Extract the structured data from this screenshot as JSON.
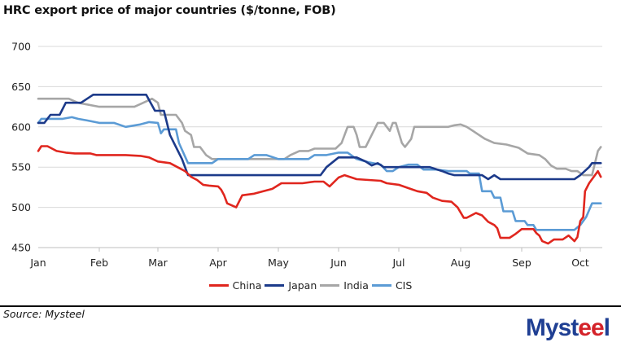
{
  "title": "HRC export price of major countries ($/tonne, FOB)",
  "source": "Source: Mysteel",
  "logo": {
    "text": "Mysteel",
    "part1": "Myst",
    "part2": "ee",
    "part3": "l"
  },
  "chart_data": {
    "type": "line",
    "title": "HRC export price of major countries ($/tonne, FOB)",
    "xlabel": "",
    "ylabel": "",
    "x_unit": "month index (0 = Jan, 9 = Oct)",
    "xlim": [
      0,
      9.35
    ],
    "ylim": [
      450,
      700
    ],
    "yticks": [
      450,
      500,
      550,
      600,
      650,
      700
    ],
    "xticks": [
      0,
      1,
      2,
      3,
      4,
      5,
      6,
      7,
      8,
      9
    ],
    "xtick_labels": [
      "Jan",
      "Feb",
      "Mar",
      "Apr",
      "May",
      "Jun",
      "Jul",
      "Aug",
      "Sep",
      "Oct"
    ],
    "grid": "horizontal",
    "legend": "bottom-center",
    "series": [
      {
        "name": "China",
        "color": "#e0261e",
        "points": [
          [
            0,
            570
          ],
          [
            0.05,
            576
          ],
          [
            0.15,
            576
          ],
          [
            0.3,
            570
          ],
          [
            0.45,
            568
          ],
          [
            0.6,
            567
          ],
          [
            0.85,
            567
          ],
          [
            0.95,
            565
          ],
          [
            1.2,
            565
          ],
          [
            1.45,
            565
          ],
          [
            1.7,
            564
          ],
          [
            1.85,
            562
          ],
          [
            2.0,
            557
          ],
          [
            2.2,
            555
          ],
          [
            2.35,
            549
          ],
          [
            2.45,
            545
          ],
          [
            2.55,
            538
          ],
          [
            2.65,
            534
          ],
          [
            2.75,
            528
          ],
          [
            2.85,
            527
          ],
          [
            3.0,
            526
          ],
          [
            3.05,
            522
          ],
          [
            3.1,
            515
          ],
          [
            3.15,
            505
          ],
          [
            3.3,
            500
          ],
          [
            3.4,
            515
          ],
          [
            3.6,
            517
          ],
          [
            3.9,
            523
          ],
          [
            4.05,
            530
          ],
          [
            4.4,
            530
          ],
          [
            4.6,
            532
          ],
          [
            4.75,
            532
          ],
          [
            4.85,
            526
          ],
          [
            5.0,
            537
          ],
          [
            5.1,
            540
          ],
          [
            5.3,
            535
          ],
          [
            5.7,
            533
          ],
          [
            5.8,
            530
          ],
          [
            6.0,
            528
          ],
          [
            6.15,
            524
          ],
          [
            6.3,
            520
          ],
          [
            6.45,
            518
          ],
          [
            6.55,
            512
          ],
          [
            6.7,
            508
          ],
          [
            6.85,
            507
          ],
          [
            6.95,
            500
          ],
          [
            7.05,
            487
          ],
          [
            7.1,
            487
          ],
          [
            7.25,
            493
          ],
          [
            7.35,
            490
          ],
          [
            7.45,
            482
          ],
          [
            7.55,
            478
          ],
          [
            7.6,
            474
          ],
          [
            7.65,
            462
          ],
          [
            7.8,
            462
          ],
          [
            7.9,
            467
          ],
          [
            8.0,
            473
          ],
          [
            8.2,
            473
          ],
          [
            8.25,
            468
          ],
          [
            8.3,
            465
          ],
          [
            8.35,
            458
          ],
          [
            8.45,
            455
          ],
          [
            8.55,
            460
          ],
          [
            8.7,
            460
          ],
          [
            8.8,
            465
          ],
          [
            8.9,
            458
          ],
          [
            8.95,
            463
          ],
          [
            9.0,
            483
          ],
          [
            9.05,
            488
          ],
          [
            9.08,
            520
          ],
          [
            9.15,
            530
          ],
          [
            9.25,
            540
          ],
          [
            9.3,
            545
          ],
          [
            9.35,
            538
          ]
        ]
      },
      {
        "name": "Japan",
        "color": "#1c3a8a",
        "points": [
          [
            0,
            605
          ],
          [
            0.1,
            605
          ],
          [
            0.2,
            615
          ],
          [
            0.35,
            615
          ],
          [
            0.45,
            630
          ],
          [
            0.7,
            630
          ],
          [
            0.9,
            640
          ],
          [
            1.2,
            640
          ],
          [
            1.5,
            640
          ],
          [
            1.7,
            640
          ],
          [
            1.8,
            640
          ],
          [
            1.95,
            620
          ],
          [
            2.1,
            620
          ],
          [
            2.2,
            590
          ],
          [
            2.3,
            575
          ],
          [
            2.4,
            560
          ],
          [
            2.5,
            540
          ],
          [
            2.8,
            540
          ],
          [
            3.5,
            540
          ],
          [
            4.0,
            540
          ],
          [
            4.5,
            540
          ],
          [
            4.7,
            540
          ],
          [
            4.8,
            550
          ],
          [
            5.0,
            562
          ],
          [
            5.3,
            562
          ],
          [
            5.45,
            557
          ],
          [
            5.55,
            552
          ],
          [
            5.65,
            555
          ],
          [
            5.75,
            550
          ],
          [
            5.9,
            550
          ],
          [
            6.2,
            550
          ],
          [
            6.5,
            550
          ],
          [
            6.7,
            545
          ],
          [
            6.8,
            542
          ],
          [
            6.9,
            540
          ],
          [
            7.2,
            540
          ],
          [
            7.35,
            540
          ],
          [
            7.45,
            535
          ],
          [
            7.55,
            540
          ],
          [
            7.65,
            535
          ],
          [
            7.9,
            535
          ],
          [
            8.3,
            535
          ],
          [
            8.7,
            535
          ],
          [
            8.9,
            535
          ],
          [
            9.0,
            540
          ],
          [
            9.15,
            550
          ],
          [
            9.2,
            555
          ],
          [
            9.35,
            555
          ]
        ]
      },
      {
        "name": "India",
        "color": "#a6a6a6",
        "points": [
          [
            0,
            635
          ],
          [
            0.5,
            635
          ],
          [
            0.65,
            630
          ],
          [
            1.0,
            625
          ],
          [
            1.3,
            625
          ],
          [
            1.6,
            625
          ],
          [
            1.75,
            630
          ],
          [
            1.9,
            635
          ],
          [
            2.0,
            630
          ],
          [
            2.05,
            615
          ],
          [
            2.3,
            615
          ],
          [
            2.4,
            605
          ],
          [
            2.45,
            595
          ],
          [
            2.55,
            590
          ],
          [
            2.6,
            575
          ],
          [
            2.7,
            575
          ],
          [
            2.8,
            565
          ],
          [
            2.9,
            560
          ],
          [
            3.2,
            560
          ],
          [
            3.5,
            560
          ],
          [
            3.8,
            560
          ],
          [
            4.1,
            560
          ],
          [
            4.2,
            565
          ],
          [
            4.35,
            570
          ],
          [
            4.5,
            570
          ],
          [
            4.6,
            573
          ],
          [
            4.95,
            573
          ],
          [
            5.05,
            580
          ],
          [
            5.15,
            600
          ],
          [
            5.25,
            600
          ],
          [
            5.3,
            590
          ],
          [
            5.35,
            575
          ],
          [
            5.45,
            575
          ],
          [
            5.55,
            590
          ],
          [
            5.65,
            605
          ],
          [
            5.75,
            605
          ],
          [
            5.8,
            600
          ],
          [
            5.85,
            595
          ],
          [
            5.9,
            605
          ],
          [
            5.95,
            605
          ],
          [
            6.05,
            580
          ],
          [
            6.1,
            575
          ],
          [
            6.2,
            585
          ],
          [
            6.25,
            600
          ],
          [
            6.6,
            600
          ],
          [
            6.8,
            600
          ],
          [
            6.9,
            602
          ],
          [
            7.0,
            603
          ],
          [
            7.1,
            600
          ],
          [
            7.2,
            595
          ],
          [
            7.3,
            590
          ],
          [
            7.4,
            585
          ],
          [
            7.55,
            580
          ],
          [
            7.75,
            578
          ],
          [
            7.85,
            576
          ],
          [
            7.95,
            574
          ],
          [
            8.1,
            567
          ],
          [
            8.3,
            565
          ],
          [
            8.4,
            560
          ],
          [
            8.5,
            552
          ],
          [
            8.6,
            548
          ],
          [
            8.75,
            548
          ],
          [
            8.85,
            545
          ],
          [
            8.95,
            545
          ],
          [
            9.05,
            540
          ],
          [
            9.2,
            540
          ],
          [
            9.25,
            555
          ],
          [
            9.3,
            570
          ],
          [
            9.35,
            575
          ]
        ]
      },
      {
        "name": "CIS",
        "color": "#5b9bd5",
        "points": [
          [
            0,
            605
          ],
          [
            0.05,
            610
          ],
          [
            0.4,
            610
          ],
          [
            0.55,
            612
          ],
          [
            0.65,
            610
          ],
          [
            0.8,
            608
          ],
          [
            1.0,
            605
          ],
          [
            1.25,
            605
          ],
          [
            1.45,
            600
          ],
          [
            1.7,
            603
          ],
          [
            1.85,
            606
          ],
          [
            2.0,
            605
          ],
          [
            2.05,
            592
          ],
          [
            2.1,
            597
          ],
          [
            2.3,
            597
          ],
          [
            2.35,
            580
          ],
          [
            2.5,
            555
          ],
          [
            2.6,
            555
          ],
          [
            2.9,
            555
          ],
          [
            3.0,
            560
          ],
          [
            3.5,
            560
          ],
          [
            3.6,
            565
          ],
          [
            3.8,
            565
          ],
          [
            4.0,
            560
          ],
          [
            4.5,
            560
          ],
          [
            4.6,
            565
          ],
          [
            4.8,
            565
          ],
          [
            5.0,
            568
          ],
          [
            5.15,
            568
          ],
          [
            5.3,
            560
          ],
          [
            5.5,
            556
          ],
          [
            5.7,
            553
          ],
          [
            5.8,
            545
          ],
          [
            5.9,
            545
          ],
          [
            6.0,
            550
          ],
          [
            6.15,
            553
          ],
          [
            6.3,
            553
          ],
          [
            6.4,
            547
          ],
          [
            6.6,
            547
          ],
          [
            6.8,
            545
          ],
          [
            7.1,
            545
          ],
          [
            7.15,
            542
          ],
          [
            7.3,
            542
          ],
          [
            7.35,
            520
          ],
          [
            7.5,
            520
          ],
          [
            7.55,
            512
          ],
          [
            7.65,
            512
          ],
          [
            7.7,
            495
          ],
          [
            7.85,
            495
          ],
          [
            7.9,
            483
          ],
          [
            8.05,
            483
          ],
          [
            8.1,
            478
          ],
          [
            8.2,
            478
          ],
          [
            8.25,
            472
          ],
          [
            8.5,
            472
          ],
          [
            8.7,
            472
          ],
          [
            8.9,
            472
          ],
          [
            9.0,
            478
          ],
          [
            9.1,
            488
          ],
          [
            9.2,
            505
          ],
          [
            9.35,
            505
          ]
        ]
      }
    ]
  }
}
